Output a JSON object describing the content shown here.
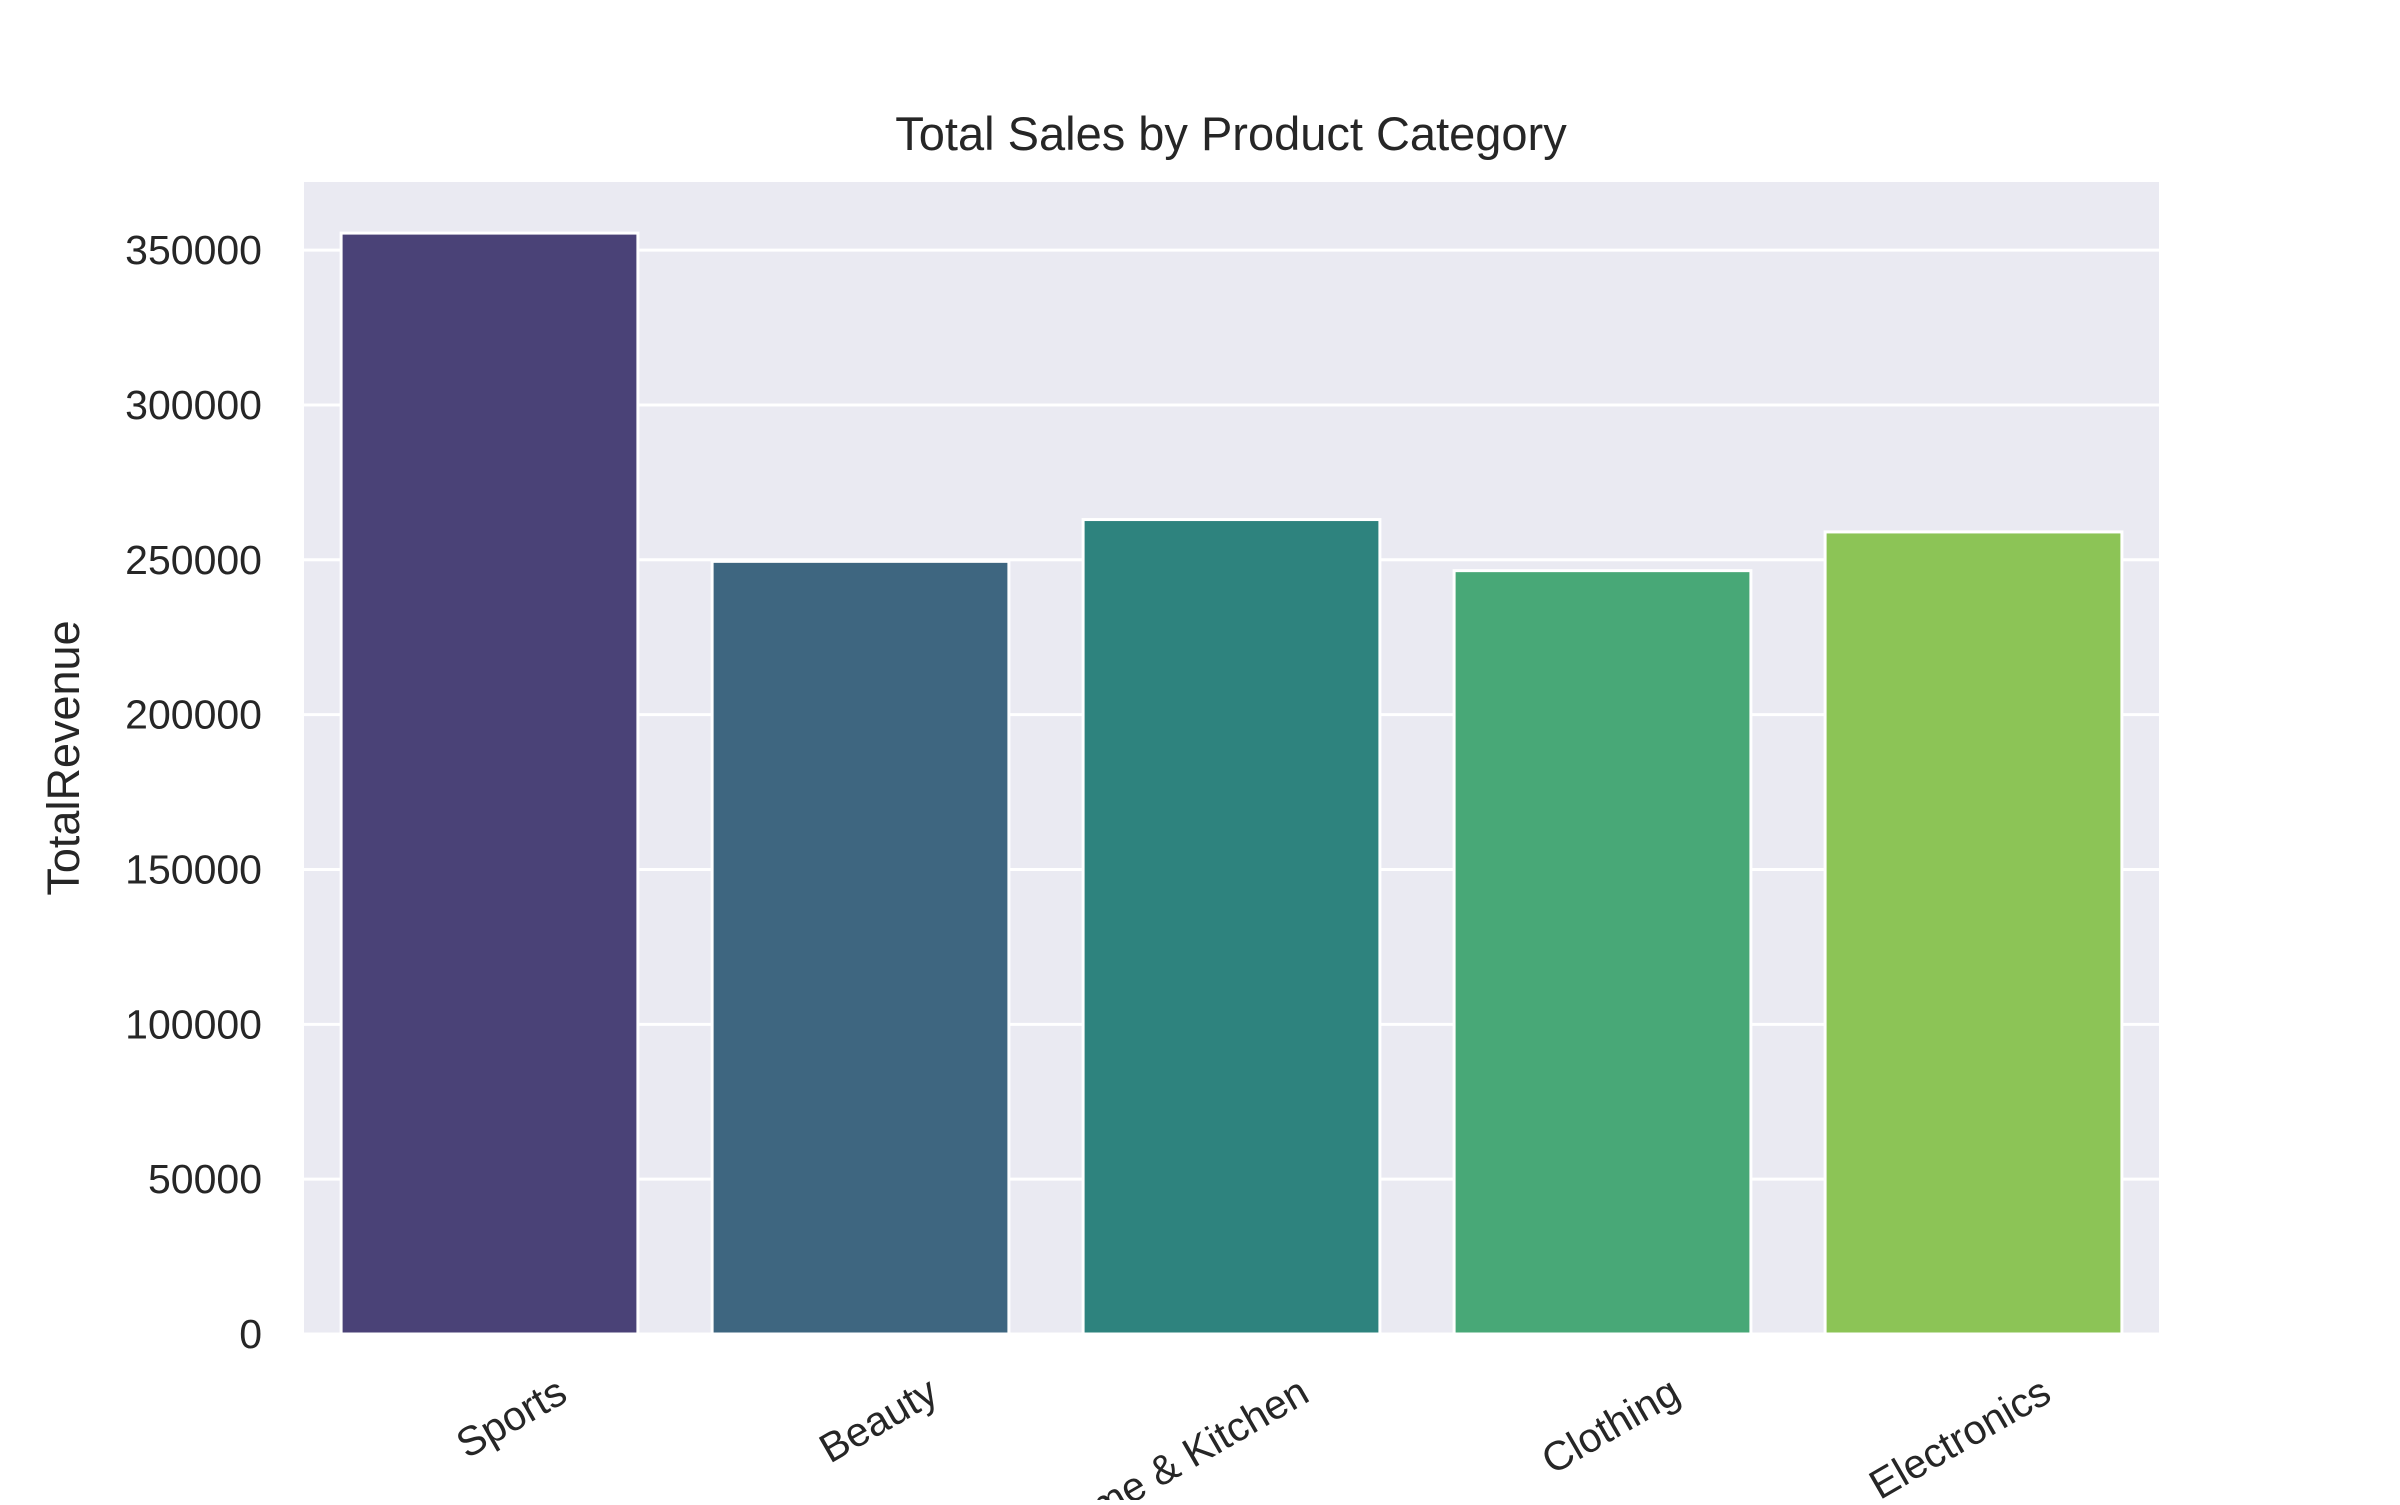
{
  "chart_data": {
    "type": "bar",
    "title": "Total Sales by Product Category",
    "xlabel": "",
    "ylabel": "TotalRevenue",
    "categories": [
      "Sports",
      "Beauty",
      "Home & Kitchen",
      "Clothing",
      "Electronics"
    ],
    "values": [
      355500,
      249500,
      263000,
      246500,
      259000
    ],
    "ylim": [
      0,
      372000
    ],
    "yticks": [
      0,
      50000,
      100000,
      150000,
      200000,
      250000,
      300000,
      350000
    ],
    "ytick_labels": [
      "0",
      "50000",
      "100000",
      "150000",
      "200000",
      "250000",
      "300000",
      "350000"
    ],
    "grid": true,
    "colors": [
      "#4A4277",
      "#3E6680",
      "#2E837E",
      "#48A877",
      "#8CC456"
    ],
    "background": "#EAEAF2",
    "xtick_rotation": -30
  }
}
